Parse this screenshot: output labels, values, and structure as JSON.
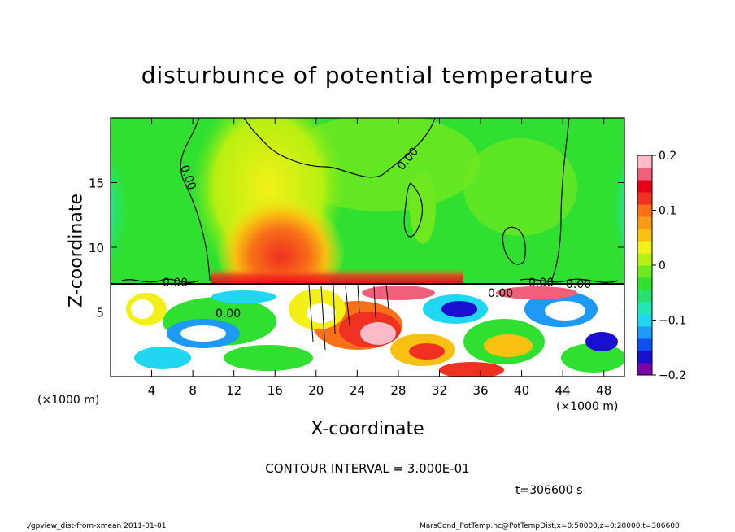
{
  "chart_data": {
    "type": "heatmap",
    "title": "disturbunce of potential temperature",
    "xlabel": "X-coordinate",
    "ylabel": "Z-coordinate",
    "x_unit_label": "(×1000 m)",
    "x_range": [
      0,
      50
    ],
    "y_range": [
      0,
      20
    ],
    "x_ticks": [
      4,
      8,
      12,
      16,
      20,
      24,
      28,
      32,
      36,
      40,
      44,
      48
    ],
    "y_ticks": [
      5,
      10,
      15
    ],
    "colorbar": {
      "range": [
        -0.2,
        0.2
      ],
      "ticks": [
        -0.2,
        -0.1,
        0,
        0.1,
        0.2
      ],
      "tick_labels": [
        "−0.2",
        "−0.1",
        "0",
        "0.1",
        "0.2"
      ],
      "colors": [
        "#7a00a8",
        "#1a0ed0",
        "#0f4ff0",
        "#1d9af5",
        "#21d6f0",
        "#20e8b8",
        "#27e070",
        "#2fe030",
        "#70e820",
        "#b8f010",
        "#f2f018",
        "#f8c010",
        "#f89a18",
        "#f87018",
        "#f03020",
        "#e8001a",
        "#f0607a",
        "#fbbcc8"
      ]
    },
    "contour_interval": "CONTOUR INTERVAL = 3.000E-01",
    "contour_labels": [
      "0.00",
      "0.00",
      "0.00",
      "0.00",
      "0.00",
      "0.00",
      "0.00"
    ],
    "time_label": "t=306600 s"
  },
  "footer": {
    "left": "./gpview_dist-from-xmean  2011-01-01",
    "right": "MarsCond_PotTemp.nc@PotTempDist,x=0:50000,z=0:20000,t=306600"
  }
}
